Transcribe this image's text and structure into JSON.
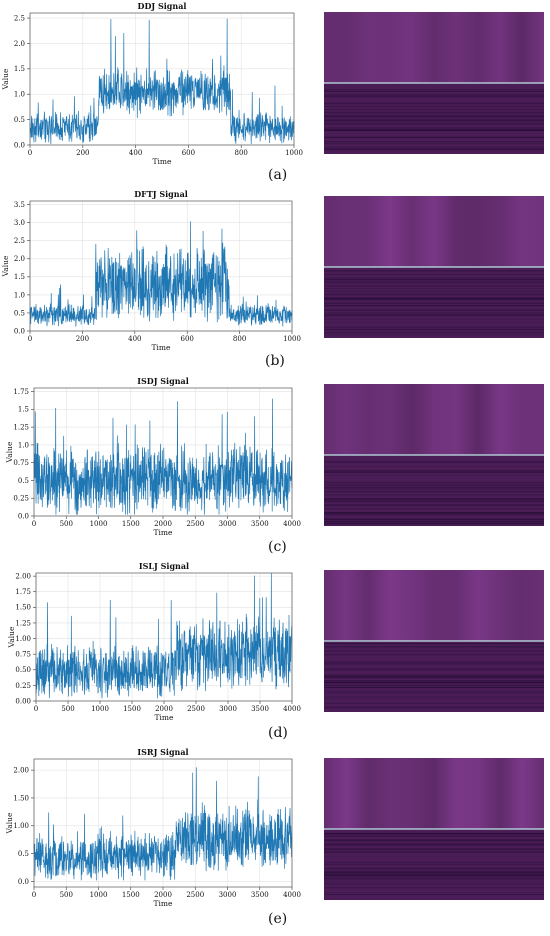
{
  "chart_data": [
    {
      "type": "line",
      "title": "DDJ Signal",
      "xlabel": "Time",
      "ylabel": "Value",
      "panel_label": "(a)",
      "xlim": [
        0,
        1000
      ],
      "ylim": [
        0,
        2.6
      ],
      "xticks": [
        "0",
        "200",
        "400",
        "600",
        "800",
        "1000"
      ],
      "yticks": [
        "0.0",
        "0.5",
        "1.0",
        "1.5",
        "2.0",
        "2.5"
      ],
      "n_points": 1000,
      "segments": [
        {
          "x": [
            0,
            260
          ],
          "mean": 0.35,
          "spread": 0.35,
          "peak": 1.25
        },
        {
          "x": [
            260,
            760
          ],
          "mean": 1.05,
          "spread": 0.55,
          "peak": 2.5
        },
        {
          "x": [
            760,
            1000
          ],
          "mean": 0.35,
          "spread": 0.35,
          "peak": 1.2
        }
      ],
      "grid": true,
      "line_color": "#1f77b4",
      "tf_image": {
        "line_position": 0.5,
        "line_color": "#bfe8e6",
        "base_color": "#4a1d57"
      }
    },
    {
      "type": "line",
      "title": "DFTJ Signal",
      "xlabel": "Time",
      "ylabel": "Value",
      "panel_label": "(b)",
      "xlim": [
        0,
        1000
      ],
      "ylim": [
        0,
        3.6
      ],
      "xticks": [
        "0",
        "200",
        "400",
        "600",
        "800",
        "1000"
      ],
      "yticks": [
        "0.0",
        "0.5",
        "1.0",
        "1.5",
        "2.0",
        "2.5",
        "3.0",
        "3.5"
      ],
      "n_points": 1000,
      "segments": [
        {
          "x": [
            0,
            250
          ],
          "mean": 0.45,
          "spread": 0.35,
          "peak": 1.3
        },
        {
          "x": [
            250,
            760
          ],
          "mean": 1.3,
          "spread": 1.2,
          "peak": 3.5
        },
        {
          "x": [
            760,
            1000
          ],
          "mean": 0.45,
          "spread": 0.35,
          "peak": 1.25
        }
      ],
      "grid": true,
      "line_color": "#1f77b4",
      "tf_image": {
        "line_position": 0.5,
        "line_color": "#bfe8e6",
        "base_color": "#4a1d57"
      }
    },
    {
      "type": "line",
      "title": "ISDJ Signal",
      "xlabel": "Time",
      "ylabel": "Value",
      "panel_label": "(c)",
      "xlim": [
        0,
        4000
      ],
      "ylim": [
        0,
        1.8
      ],
      "xticks": [
        "0",
        "500",
        "1000",
        "1500",
        "2000",
        "2500",
        "3000",
        "3500",
        "4000"
      ],
      "yticks": [
        "0.0",
        "0.25",
        "0.5",
        "0.75",
        "1.0",
        "1.25",
        "1.5",
        "1.75"
      ],
      "n_points": 4000,
      "segments": [
        {
          "x": [
            0,
            4000
          ],
          "mean": 0.5,
          "spread": 0.55,
          "peak": 1.77
        }
      ],
      "grid": true,
      "line_color": "#1f77b4",
      "tf_image": {
        "line_position": 0.5,
        "line_color": "#bfe8e6",
        "base_color": "#4a1d57"
      }
    },
    {
      "type": "line",
      "title": "ISLJ Signal",
      "xlabel": "Time",
      "ylabel": "Value",
      "panel_label": "(d)",
      "xlim": [
        0,
        4000
      ],
      "ylim": [
        0,
        2.05
      ],
      "xticks": [
        "0",
        "500",
        "1000",
        "1500",
        "2000",
        "2500",
        "3000",
        "3500",
        "4000"
      ],
      "yticks": [
        "0.00",
        "0.25",
        "0.50",
        "0.75",
        "1.00",
        "1.25",
        "1.50",
        "1.75",
        "2.00"
      ],
      "n_points": 4000,
      "segments": [
        {
          "x": [
            0,
            2200
          ],
          "mean": 0.45,
          "spread": 0.5,
          "peak": 1.8
        },
        {
          "x": [
            2200,
            4000
          ],
          "mean": 0.75,
          "spread": 0.65,
          "peak": 2.05
        }
      ],
      "grid": true,
      "line_color": "#1f77b4",
      "tf_image": {
        "line_position": 0.5,
        "line_color": "#bfe8e6",
        "base_color": "#4a1d57"
      }
    },
    {
      "type": "line",
      "title": "ISRJ Signal",
      "xlabel": "Time",
      "ylabel": "Value",
      "panel_label": "(e)",
      "xlim": [
        0,
        4000
      ],
      "ylim": [
        -0.1,
        2.2
      ],
      "xticks": [
        "0",
        "500",
        "1000",
        "1500",
        "2000",
        "2500",
        "3000",
        "3500",
        "4000"
      ],
      "yticks": [
        "0.0",
        "0.5",
        "1.00",
        "1.50",
        "2.00"
      ],
      "n_points": 4000,
      "segments": [
        {
          "x": [
            0,
            2200
          ],
          "mean": 0.45,
          "spread": 0.5,
          "peak": 1.7
        },
        {
          "x": [
            2200,
            4000
          ],
          "mean": 0.75,
          "spread": 0.65,
          "peak": 2.1
        }
      ],
      "grid": true,
      "line_color": "#1f77b4",
      "tf_image": {
        "line_position": 0.5,
        "line_color": "#bfe8e6",
        "base_color": "#4a1d57"
      }
    }
  ]
}
